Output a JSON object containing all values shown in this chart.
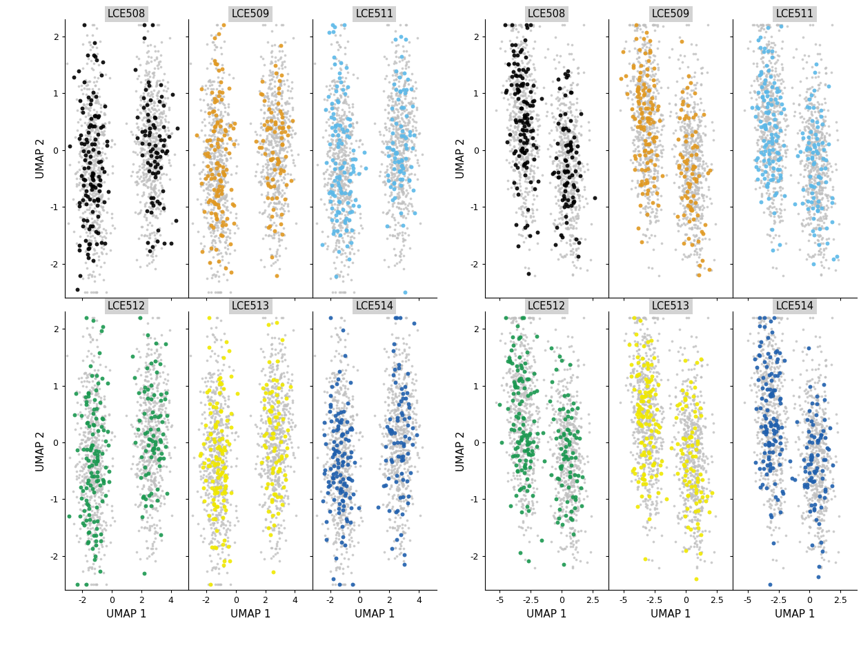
{
  "plates": [
    "LCE508",
    "LCE509",
    "LCE511",
    "LCE512",
    "LCE513",
    "LCE514"
  ],
  "colors": [
    "#000000",
    "#E09820",
    "#5BB8E8",
    "#1A9850",
    "#F0E800",
    "#1F5FAD"
  ],
  "left_xlim": [
    -3.2,
    5.2
  ],
  "left_xticks": [
    -2,
    0,
    2,
    4
  ],
  "right_xlim": [
    -6.2,
    3.8
  ],
  "right_xticks": [
    -5.0,
    -2.5,
    0.0,
    2.5
  ],
  "ylim": [
    -2.6,
    2.3
  ],
  "yticks": [
    -2,
    -1,
    0,
    1,
    2
  ],
  "panel_label_bg": "#D3D3D3",
  "gray_color": "#C0C0C0",
  "pt_size": 18,
  "gray_pt_size": 7,
  "seed": 42
}
